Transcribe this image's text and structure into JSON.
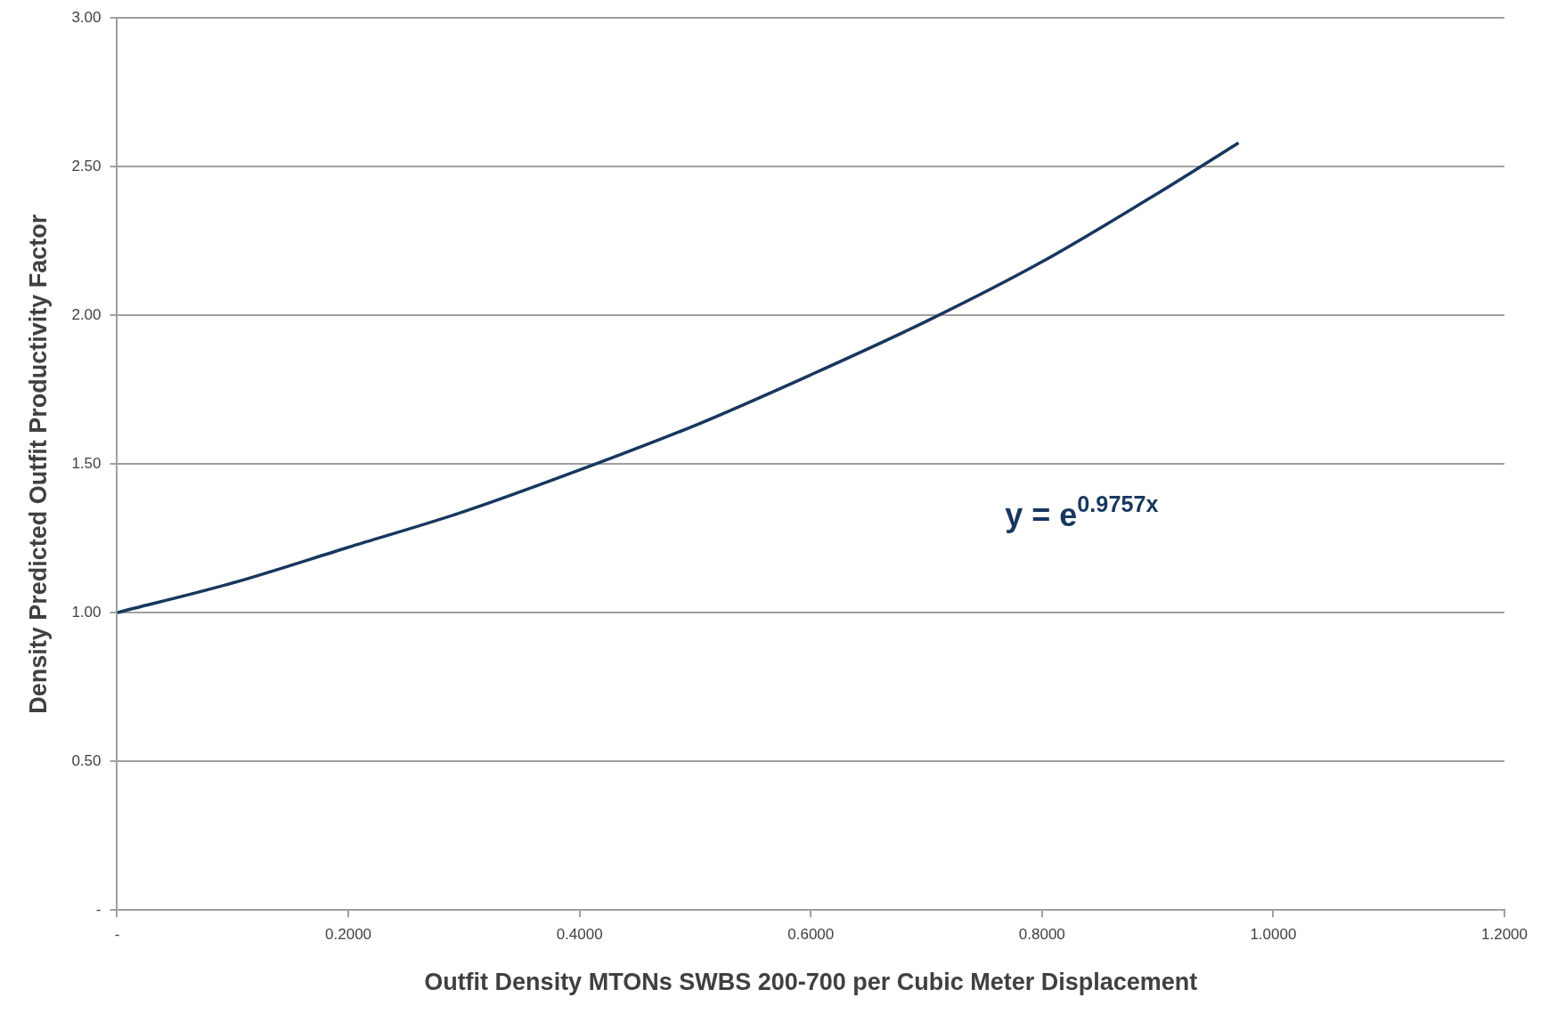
{
  "chart_data": {
    "type": "line",
    "xlabel": "Outfit Density MTONs SWBS 200-700 per Cubic Meter Displacement",
    "ylabel": "Density Predicted Outfit Productivity Factor",
    "x": [
      0,
      0.1,
      0.2,
      0.3,
      0.4,
      0.5,
      0.6,
      0.7,
      0.8,
      0.9,
      0.97
    ],
    "series": [
      {
        "color": "#17375e",
        "values": [
          1.0,
          1.1,
          1.22,
          1.34,
          1.48,
          1.63,
          1.8,
          1.98,
          2.18,
          2.41,
          2.58
        ]
      }
    ],
    "xlim": [
      0,
      1.2
    ],
    "xticks": [
      {
        "value": 0,
        "label": "-"
      },
      {
        "value": 0.2,
        "label": "0.2000"
      },
      {
        "value": 0.4,
        "label": "0.4000"
      },
      {
        "value": 0.6,
        "label": "0.6000"
      },
      {
        "value": 0.8,
        "label": "0.8000"
      },
      {
        "value": 1.0,
        "label": "1.0000"
      },
      {
        "value": 1.2,
        "label": "1.2000"
      }
    ],
    "ylim": [
      0,
      3
    ],
    "yticks": [
      {
        "value": 0,
        "label": "-"
      },
      {
        "value": 0.5,
        "label": "0.50"
      },
      {
        "value": 1,
        "label": "1.00"
      },
      {
        "value": 1.5,
        "label": "1.50"
      },
      {
        "value": 2,
        "label": "2.00"
      },
      {
        "value": 2.5,
        "label": "2.50"
      },
      {
        "value": 3,
        "label": "3.00"
      }
    ],
    "grid": "y",
    "legend": false,
    "marker": "none",
    "line_style": "solid",
    "annotations": [
      "y = e$^{0.9757x}$"
    ]
  }
}
